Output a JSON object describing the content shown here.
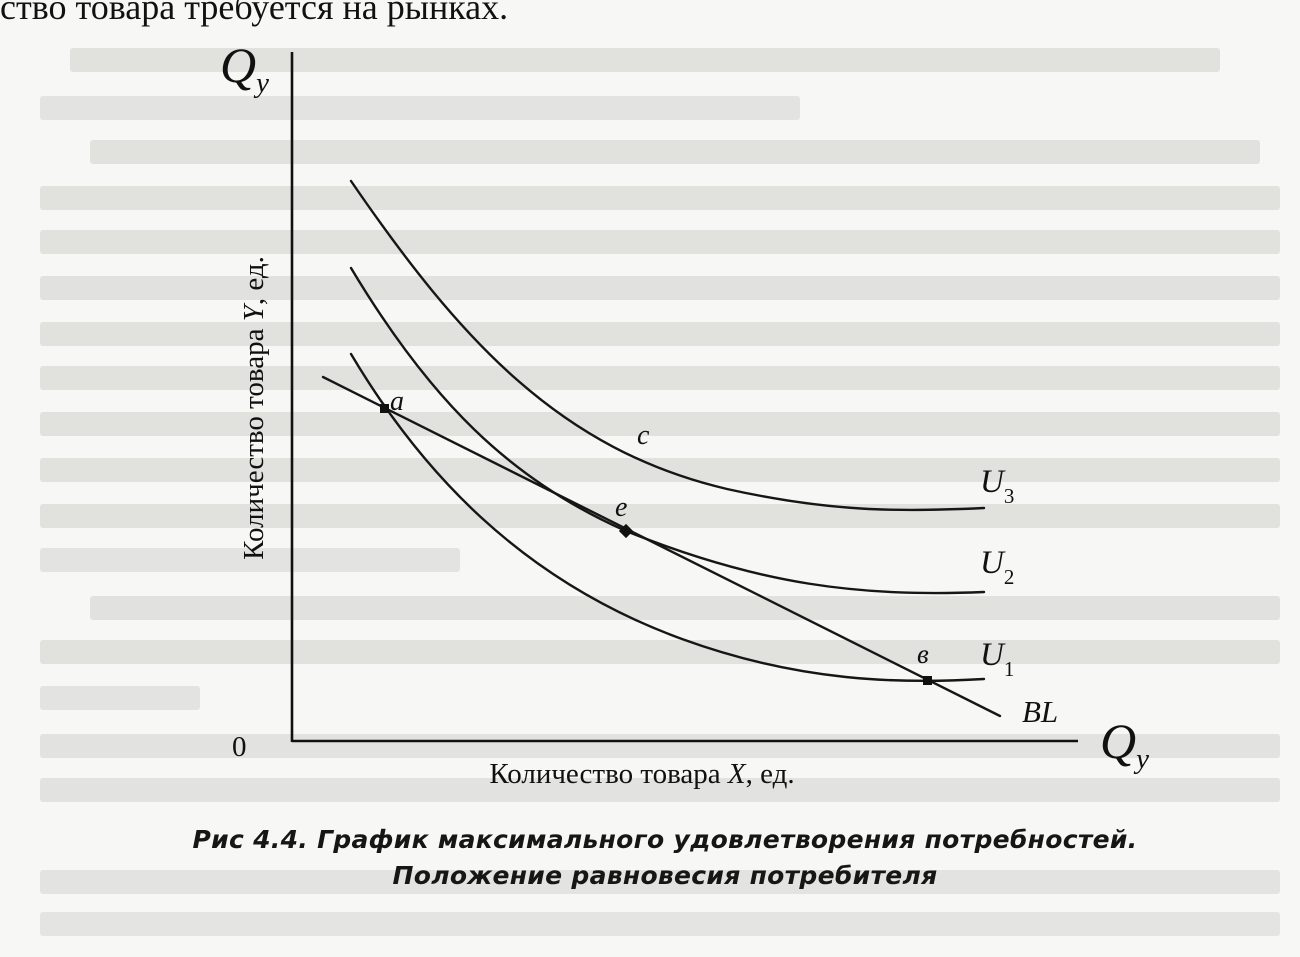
{
  "page": {
    "top_text": "ство товара требуется на рынках."
  },
  "diagram": {
    "y_axis_symbol": "Q",
    "y_axis_subscript": "y",
    "x_axis_symbol": "Q",
    "x_axis_subscript": "y",
    "origin_label": "0",
    "y_axis_title": {
      "prefix": "Количество товара ",
      "variable": "Y",
      "suffix": ", ед."
    },
    "x_axis_title": {
      "prefix": "Количество товара ",
      "variable": "X",
      "suffix": ", ед."
    },
    "curves": [
      {
        "id": "U3",
        "base": "U",
        "sub": "3"
      },
      {
        "id": "U2",
        "base": "U",
        "sub": "2"
      },
      {
        "id": "U1",
        "base": "U",
        "sub": "1"
      }
    ],
    "budget_line_label": "BL",
    "points": [
      {
        "id": "a",
        "label": "a"
      },
      {
        "id": "e",
        "label": "e"
      },
      {
        "id": "v",
        "label": "в"
      },
      {
        "id": "c",
        "label": "c"
      }
    ]
  },
  "caption": {
    "line1": "Рис 4.4. График максимального удовлетворения потребностей.",
    "line2": "Положение равновесия потребителя"
  }
}
